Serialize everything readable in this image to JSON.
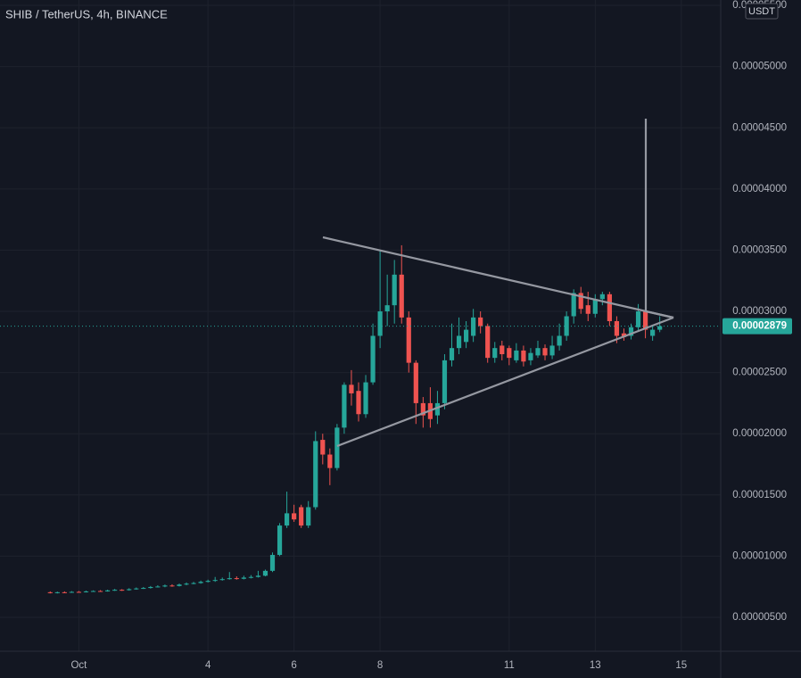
{
  "chart_data": {
    "type": "candlestick",
    "title": "SHIB / TetherUS, 4h, BINANCE",
    "currency": "USDT",
    "up_color": "#26a69a",
    "down_color": "#ef5350",
    "grid": true,
    "xlim": [
      -44,
      358
    ],
    "xticks": [
      {
        "value": 0,
        "label": "Oct"
      },
      {
        "value": 72,
        "label": "4"
      },
      {
        "value": 120,
        "label": "6"
      },
      {
        "value": 168,
        "label": "8"
      },
      {
        "value": 240,
        "label": "11"
      },
      {
        "value": 288,
        "label": "13"
      },
      {
        "value": 336,
        "label": "15"
      }
    ],
    "ylim": [
      2.23e-06,
      5.544e-05
    ],
    "yticks": [
      {
        "value": 5e-06,
        "label": "0.00000500"
      },
      {
        "value": 1e-05,
        "label": "0.00001000"
      },
      {
        "value": 1.5e-05,
        "label": "0.00001500"
      },
      {
        "value": 2e-05,
        "label": "0.00002000"
      },
      {
        "value": 2.5e-05,
        "label": "0.00002500"
      },
      {
        "value": 3e-05,
        "label": "0.00003000"
      },
      {
        "value": 3.5e-05,
        "label": "0.00003500"
      },
      {
        "value": 4e-05,
        "label": "0.00004000"
      },
      {
        "value": 4.5e-05,
        "label": "0.00004500"
      },
      {
        "value": 5e-05,
        "label": "0.00005000"
      },
      {
        "value": 5.5e-05,
        "label": "0.00005500"
      }
    ],
    "last": {
      "value": 2.879e-05,
      "label": "0.00002879"
    },
    "x": [
      -16,
      -12,
      -8,
      -4,
      0,
      4,
      8,
      12,
      16,
      20,
      24,
      28,
      32,
      36,
      40,
      44,
      48,
      52,
      56,
      60,
      64,
      68,
      72,
      76,
      80,
      84,
      88,
      92,
      96,
      100,
      104,
      108,
      112,
      116,
      120,
      124,
      128,
      132,
      136,
      140,
      144,
      148,
      152,
      156,
      160,
      164,
      168,
      172,
      176,
      180,
      184,
      188,
      192,
      196,
      200,
      204,
      208,
      212,
      216,
      220,
      224,
      228,
      232,
      236,
      240,
      244,
      248,
      252,
      256,
      260,
      264,
      268,
      272,
      276,
      280,
      284,
      288,
      292,
      296,
      300,
      304,
      308,
      312,
      316,
      320,
      324
    ],
    "open": [
      7.05e-06,
      7e-06,
      7.05e-06,
      7.02e-06,
      7.08e-06,
      7.06e-06,
      7.12e-06,
      7.15e-06,
      7.12e-06,
      7.2e-06,
      7.25e-06,
      7.22e-06,
      7.3e-06,
      7.36e-06,
      7.4e-06,
      7.48e-06,
      7.52e-06,
      7.6e-06,
      7.56e-06,
      7.68e-06,
      7.75e-06,
      7.8e-06,
      7.9e-06,
      7.98e-06,
      8.05e-06,
      8.12e-06,
      8.2e-06,
      8.15e-06,
      8.25e-06,
      8.3e-06,
      8.4e-06,
      8.8e-06,
      1.01e-05,
      1.25e-05,
      1.35e-05,
      1.4e-05,
      1.25e-05,
      1.4e-05,
      1.95e-05,
      1.83e-05,
      1.72e-05,
      2.05e-05,
      2.4e-05,
      2.35e-05,
      2.16e-05,
      2.42e-05,
      2.8e-05,
      3e-05,
      3.05e-05,
      3.3e-05,
      2.95e-05,
      2.58e-05,
      2.25e-05,
      2.25e-05,
      2.15e-05,
      2.25e-05,
      2.6e-05,
      2.7e-05,
      2.75e-05,
      2.8e-05,
      2.95e-05,
      2.88e-05,
      2.62e-05,
      2.72e-05,
      2.7e-05,
      2.6e-05,
      2.68e-05,
      2.6e-05,
      2.64e-05,
      2.7e-05,
      2.64e-05,
      2.72e-05,
      2.8e-05,
      2.96e-05,
      3.15e-05,
      3.05e-05,
      2.98e-05,
      3.1e-05,
      3.14e-05,
      2.92e-05,
      2.82e-05,
      2.8e-05,
      2.87e-05,
      3e-05,
      2.8e-05,
      2.85e-05
    ],
    "high": [
      7.12e-06,
      7.1e-06,
      7.12e-06,
      7.14e-06,
      7.15e-06,
      7.18e-06,
      7.2e-06,
      7.22e-06,
      7.26e-06,
      7.32e-06,
      7.3e-06,
      7.38e-06,
      7.44e-06,
      7.48e-06,
      7.56e-06,
      7.62e-06,
      7.68e-06,
      7.7e-06,
      7.76e-06,
      7.85e-06,
      7.9e-06,
      8e-06,
      8.08e-06,
      8.3e-06,
      8.25e-06,
      8.7e-06,
      8.35e-06,
      8.4e-06,
      8.45e-06,
      8.8e-06,
      8.9e-06,
      1.03e-05,
      1.27e-05,
      1.527e-05,
      1.42e-05,
      1.42e-05,
      1.45e-05,
      2.02e-05,
      2e-05,
      1.88e-05,
      2.08e-05,
      2.42e-05,
      2.52e-05,
      2.42e-05,
      2.48e-05,
      2.9e-05,
      3.5e-05,
      3.3e-05,
      3.42e-05,
      3.54e-05,
      3e-05,
      2.6e-05,
      2.3e-05,
      2.38e-05,
      2.35e-05,
      2.65e-05,
      2.9e-05,
      2.95e-05,
      2.92e-05,
      3.02e-05,
      3e-05,
      2.9e-05,
      2.75e-05,
      2.76e-05,
      2.72e-05,
      2.74e-05,
      2.72e-05,
      2.7e-05,
      2.76e-05,
      2.73e-05,
      2.8e-05,
      2.9e-05,
      3e-05,
      3.18e-05,
      3.2e-05,
      3.16e-05,
      3.14e-05,
      3.16e-05,
      3.16e-05,
      2.96e-05,
      2.86e-05,
      2.9e-05,
      3.06e-05,
      3.02e-05,
      2.88e-05,
      2.96e-05
    ],
    "low": [
      6.95e-06,
      6.95e-06,
      6.98e-06,
      7e-06,
      7.02e-06,
      7.03e-06,
      7.08e-06,
      7.08e-06,
      7.1e-06,
      7.16e-06,
      7.16e-06,
      7.18e-06,
      7.26e-06,
      7.32e-06,
      7.35e-06,
      7.44e-06,
      7.46e-06,
      7.5e-06,
      7.52e-06,
      7.62e-06,
      7.7e-06,
      7.75e-06,
      7.85e-06,
      7.9e-06,
      8e-06,
      8.08e-06,
      8.08e-06,
      8.1e-06,
      8.18e-06,
      8.25e-06,
      8.35e-06,
      8.7e-06,
      1e-05,
      1.23e-05,
      1.28e-05,
      1.23e-05,
      1.23e-05,
      1.38e-05,
      1.75e-05,
      1.58e-05,
      1.7e-05,
      2e-05,
      2.23e-05,
      2.1e-05,
      2.13e-05,
      2.4e-05,
      2.7e-05,
      2.88e-05,
      2.9e-05,
      2.9e-05,
      2.5e-05,
      2.08e-05,
      2.05e-05,
      2.05e-05,
      2.08e-05,
      2.2e-05,
      2.55e-05,
      2.65e-05,
      2.7e-05,
      2.75e-05,
      2.82e-05,
      2.58e-05,
      2.58e-05,
      2.6e-05,
      2.56e-05,
      2.58e-05,
      2.55e-05,
      2.56e-05,
      2.62e-05,
      2.6e-05,
      2.61e-05,
      2.68e-05,
      2.76e-05,
      2.9e-05,
      2.98e-05,
      2.92e-05,
      2.95e-05,
      3.05e-05,
      2.88e-05,
      2.74e-05,
      2.76e-05,
      2.77e-05,
      2.84e-05,
      2.78e-05,
      2.76e-05,
      2.83e-05
    ],
    "close": [
      7e-06,
      7.05e-06,
      7.02e-06,
      7.08e-06,
      7.06e-06,
      7.12e-06,
      7.15e-06,
      7.12e-06,
      7.2e-06,
      7.25e-06,
      7.22e-06,
      7.3e-06,
      7.36e-06,
      7.4e-06,
      7.48e-06,
      7.52e-06,
      7.6e-06,
      7.56e-06,
      7.68e-06,
      7.75e-06,
      7.8e-06,
      7.9e-06,
      7.98e-06,
      8.05e-06,
      8.12e-06,
      8.2e-06,
      8.15e-06,
      8.25e-06,
      8.3e-06,
      8.4e-06,
      8.8e-06,
      1.01e-05,
      1.25e-05,
      1.35e-05,
      1.3e-05,
      1.25e-05,
      1.4e-05,
      1.94e-05,
      1.83e-05,
      1.72e-05,
      2.05e-05,
      2.4e-05,
      2.33e-05,
      2.16e-05,
      2.42e-05,
      2.8e-05,
      3e-05,
      3.05e-05,
      3.3e-05,
      2.95e-05,
      2.58e-05,
      2.25e-05,
      2.15e-05,
      2.12e-05,
      2.25e-05,
      2.6e-05,
      2.7e-05,
      2.8e-05,
      2.85e-05,
      2.95e-05,
      2.88e-05,
      2.62e-05,
      2.7e-05,
      2.65e-05,
      2.62e-05,
      2.68e-05,
      2.59e-05,
      2.66e-05,
      2.7e-05,
      2.64e-05,
      2.72e-05,
      2.8e-05,
      2.96e-05,
      3.15e-05,
      3.02e-05,
      2.98e-05,
      3.1e-05,
      3.14e-05,
      2.92e-05,
      2.8e-05,
      2.79e-05,
      2.87e-05,
      3e-05,
      2.85e-05,
      2.85e-05,
      2.879e-05
    ]
  }
}
